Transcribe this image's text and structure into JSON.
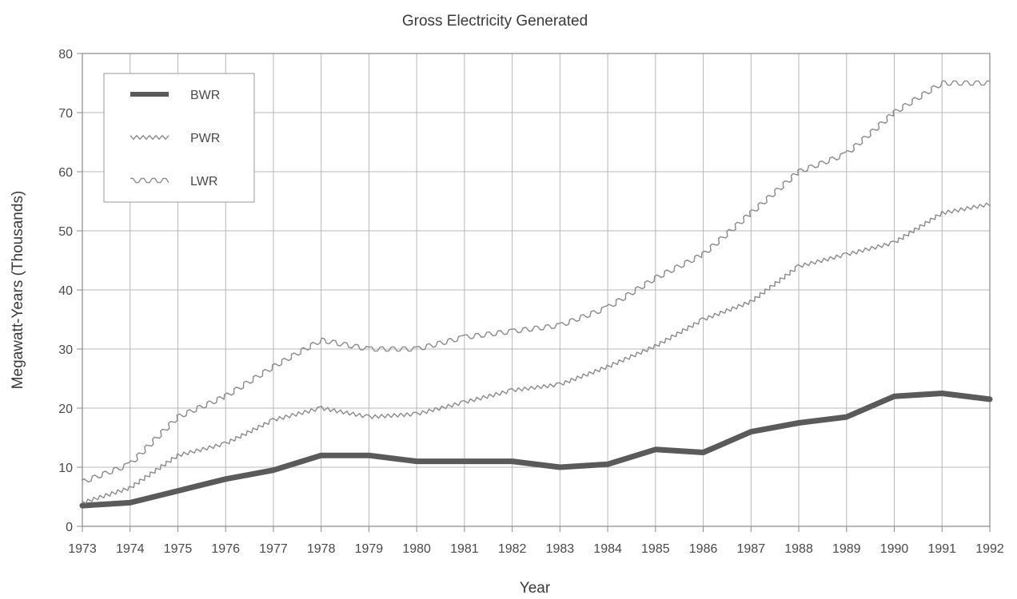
{
  "chart_data": {
    "type": "line",
    "title": "Gross Electricity Generated",
    "xlabel": "Year",
    "ylabel": "Megawatt-Years (Thousands)",
    "xlim": [
      1973,
      1992
    ],
    "ylim": [
      0,
      80
    ],
    "y_ticks": [
      0,
      10,
      20,
      30,
      40,
      50,
      60,
      70,
      80
    ],
    "x": [
      1973,
      1974,
      1975,
      1976,
      1977,
      1978,
      1979,
      1980,
      1981,
      1982,
      1983,
      1984,
      1985,
      1986,
      1987,
      1988,
      1989,
      1990,
      1991,
      1992
    ],
    "grid": true,
    "legend_position": "top-left",
    "series": [
      {
        "name": "BWR",
        "color": "#5a5a5a",
        "style": "thick-solid",
        "values": [
          3.5,
          4,
          6,
          8,
          9.5,
          12,
          12,
          11,
          11,
          11,
          10,
          10.5,
          13,
          12.5,
          16,
          17.5,
          18.5,
          22,
          22.5,
          21.5
        ]
      },
      {
        "name": "PWR",
        "color": "#8a8a8a",
        "style": "zigzag",
        "values": [
          4,
          6.5,
          12,
          14,
          18,
          20,
          18.5,
          19,
          21,
          23,
          24,
          27,
          30.5,
          35,
          38,
          44,
          46,
          48,
          53,
          54.5
        ]
      },
      {
        "name": "LWR",
        "color": "#8a8a8a",
        "style": "square-wave",
        "values": [
          7.5,
          10.5,
          18.5,
          22,
          27,
          31.5,
          30,
          30,
          32,
          33,
          34,
          37,
          42,
          46,
          53,
          60,
          63,
          70,
          75,
          75
        ]
      }
    ]
  }
}
